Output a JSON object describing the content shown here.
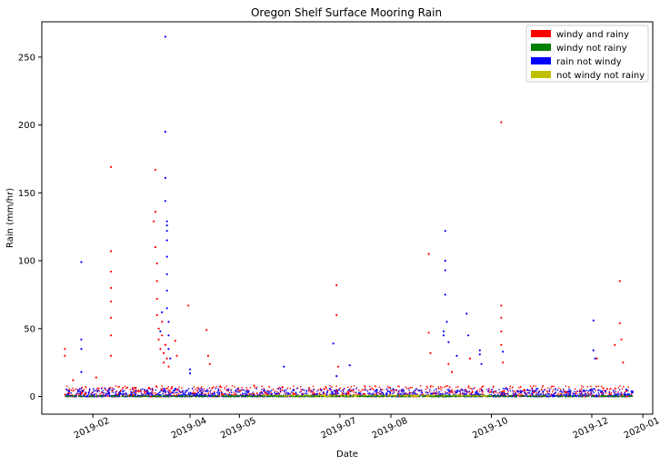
{
  "chart_data": {
    "type": "scatter",
    "title": "Oregon Shelf Surface Mooring Rain",
    "xlabel": "Date",
    "ylabel": "Rain (mm/hr)",
    "x_type": "date",
    "xlim": [
      "2019-01-01",
      "2020-01-07"
    ],
    "ylim": [
      -13,
      276
    ],
    "x_ticks": [
      "2019-02",
      "2019-04",
      "2019-05",
      "2019-07",
      "2019-08",
      "2019-10",
      "2019-12",
      "2020-01"
    ],
    "y_ticks": [
      0,
      50,
      100,
      150,
      200,
      250
    ],
    "grid": false,
    "legend_position": "top-right",
    "series": [
      {
        "name": "windy and rainy",
        "color": "#ff0000",
        "points": [
          [
            "2019-01-15",
            35
          ],
          [
            "2019-01-15",
            30
          ],
          [
            "2019-01-20",
            12
          ],
          [
            "2019-02-03",
            14
          ],
          [
            "2019-02-12",
            169
          ],
          [
            "2019-02-12",
            107
          ],
          [
            "2019-02-12",
            92
          ],
          [
            "2019-02-12",
            80
          ],
          [
            "2019-02-12",
            70
          ],
          [
            "2019-02-12",
            58
          ],
          [
            "2019-02-12",
            45
          ],
          [
            "2019-02-12",
            30
          ],
          [
            "2019-03-10",
            129
          ],
          [
            "2019-03-11",
            167
          ],
          [
            "2019-03-11",
            136
          ],
          [
            "2019-03-11",
            110
          ],
          [
            "2019-03-12",
            98
          ],
          [
            "2019-03-12",
            85
          ],
          [
            "2019-03-12",
            72
          ],
          [
            "2019-03-12",
            60
          ],
          [
            "2019-03-13",
            50
          ],
          [
            "2019-03-13",
            42
          ],
          [
            "2019-03-14",
            35
          ],
          [
            "2019-03-15",
            55
          ],
          [
            "2019-03-15",
            45
          ],
          [
            "2019-03-16",
            32
          ],
          [
            "2019-03-16",
            25
          ],
          [
            "2019-03-17",
            38
          ],
          [
            "2019-03-18",
            28
          ],
          [
            "2019-03-19",
            22
          ],
          [
            "2019-03-23",
            41
          ],
          [
            "2019-03-24",
            30
          ],
          [
            "2019-03-31",
            67
          ],
          [
            "2019-04-11",
            49
          ],
          [
            "2019-04-12",
            30
          ],
          [
            "2019-04-13",
            24
          ],
          [
            "2019-05-10",
            8
          ],
          [
            "2019-06-29",
            82
          ],
          [
            "2019-06-29",
            60
          ],
          [
            "2019-06-30",
            22
          ],
          [
            "2019-08-24",
            105
          ],
          [
            "2019-08-24",
            47
          ],
          [
            "2019-08-25",
            32
          ],
          [
            "2019-09-05",
            24
          ],
          [
            "2019-09-07",
            18
          ],
          [
            "2019-09-18",
            28
          ],
          [
            "2019-10-07",
            202
          ],
          [
            "2019-10-07",
            67
          ],
          [
            "2019-10-07",
            58
          ],
          [
            "2019-10-07",
            48
          ],
          [
            "2019-10-07",
            38
          ],
          [
            "2019-10-08",
            25
          ],
          [
            "2019-12-04",
            28
          ],
          [
            "2019-12-15",
            38
          ],
          [
            "2019-12-18",
            85
          ],
          [
            "2019-12-18",
            54
          ],
          [
            "2019-12-19",
            42
          ],
          [
            "2019-12-20",
            25
          ]
        ]
      },
      {
        "name": "windy not rainy",
        "color": "#008000",
        "points": []
      },
      {
        "name": "rain not windy",
        "color": "#0000ff",
        "points": [
          [
            "2019-01-25",
            99
          ],
          [
            "2019-01-25",
            42
          ],
          [
            "2019-01-25",
            35
          ],
          [
            "2019-01-25",
            18
          ],
          [
            "2019-03-17",
            265
          ],
          [
            "2019-03-17",
            195
          ],
          [
            "2019-03-17",
            161
          ],
          [
            "2019-03-17",
            144
          ],
          [
            "2019-03-18",
            129
          ],
          [
            "2019-03-18",
            126
          ],
          [
            "2019-03-18",
            122
          ],
          [
            "2019-03-18",
            115
          ],
          [
            "2019-03-18",
            103
          ],
          [
            "2019-03-18",
            90
          ],
          [
            "2019-03-18",
            78
          ],
          [
            "2019-03-18",
            65
          ],
          [
            "2019-03-19",
            55
          ],
          [
            "2019-03-19",
            45
          ],
          [
            "2019-03-19",
            35
          ],
          [
            "2019-03-20",
            28
          ],
          [
            "2019-03-14",
            48
          ],
          [
            "2019-03-15",
            62
          ],
          [
            "2019-04-01",
            20
          ],
          [
            "2019-04-01",
            17
          ],
          [
            "2019-05-28",
            22
          ],
          [
            "2019-06-27",
            39
          ],
          [
            "2019-06-29",
            15
          ],
          [
            "2019-07-07",
            23
          ],
          [
            "2019-09-02",
            45
          ],
          [
            "2019-09-02",
            48
          ],
          [
            "2019-09-03",
            122
          ],
          [
            "2019-09-03",
            100
          ],
          [
            "2019-09-03",
            93
          ],
          [
            "2019-09-03",
            75
          ],
          [
            "2019-09-04",
            55
          ],
          [
            "2019-09-05",
            40
          ],
          [
            "2019-09-10",
            30
          ],
          [
            "2019-09-16",
            61
          ],
          [
            "2019-09-17",
            45
          ],
          [
            "2019-09-24",
            34
          ],
          [
            "2019-09-24",
            31
          ],
          [
            "2019-09-25",
            24
          ],
          [
            "2019-10-08",
            33
          ],
          [
            "2019-12-02",
            56
          ],
          [
            "2019-12-02",
            34
          ],
          [
            "2019-12-03",
            28
          ]
        ]
      },
      {
        "name": "not windy not rainy",
        "color": "#bfbf00",
        "points": []
      }
    ],
    "baseline_bands": [
      {
        "name": "windy and rainy",
        "start": "2019-01-15",
        "end": "2019-12-26",
        "max": 8
      },
      {
        "name": "rain not windy",
        "start": "2019-01-15",
        "end": "2019-12-26",
        "max": 6
      },
      {
        "name": "not windy not rainy",
        "start": "2019-05-15",
        "end": "2019-10-01",
        "max": 1
      },
      {
        "name": "windy not rainy",
        "start": "2019-01-15",
        "end": "2019-12-26",
        "max": 0.5
      }
    ]
  }
}
